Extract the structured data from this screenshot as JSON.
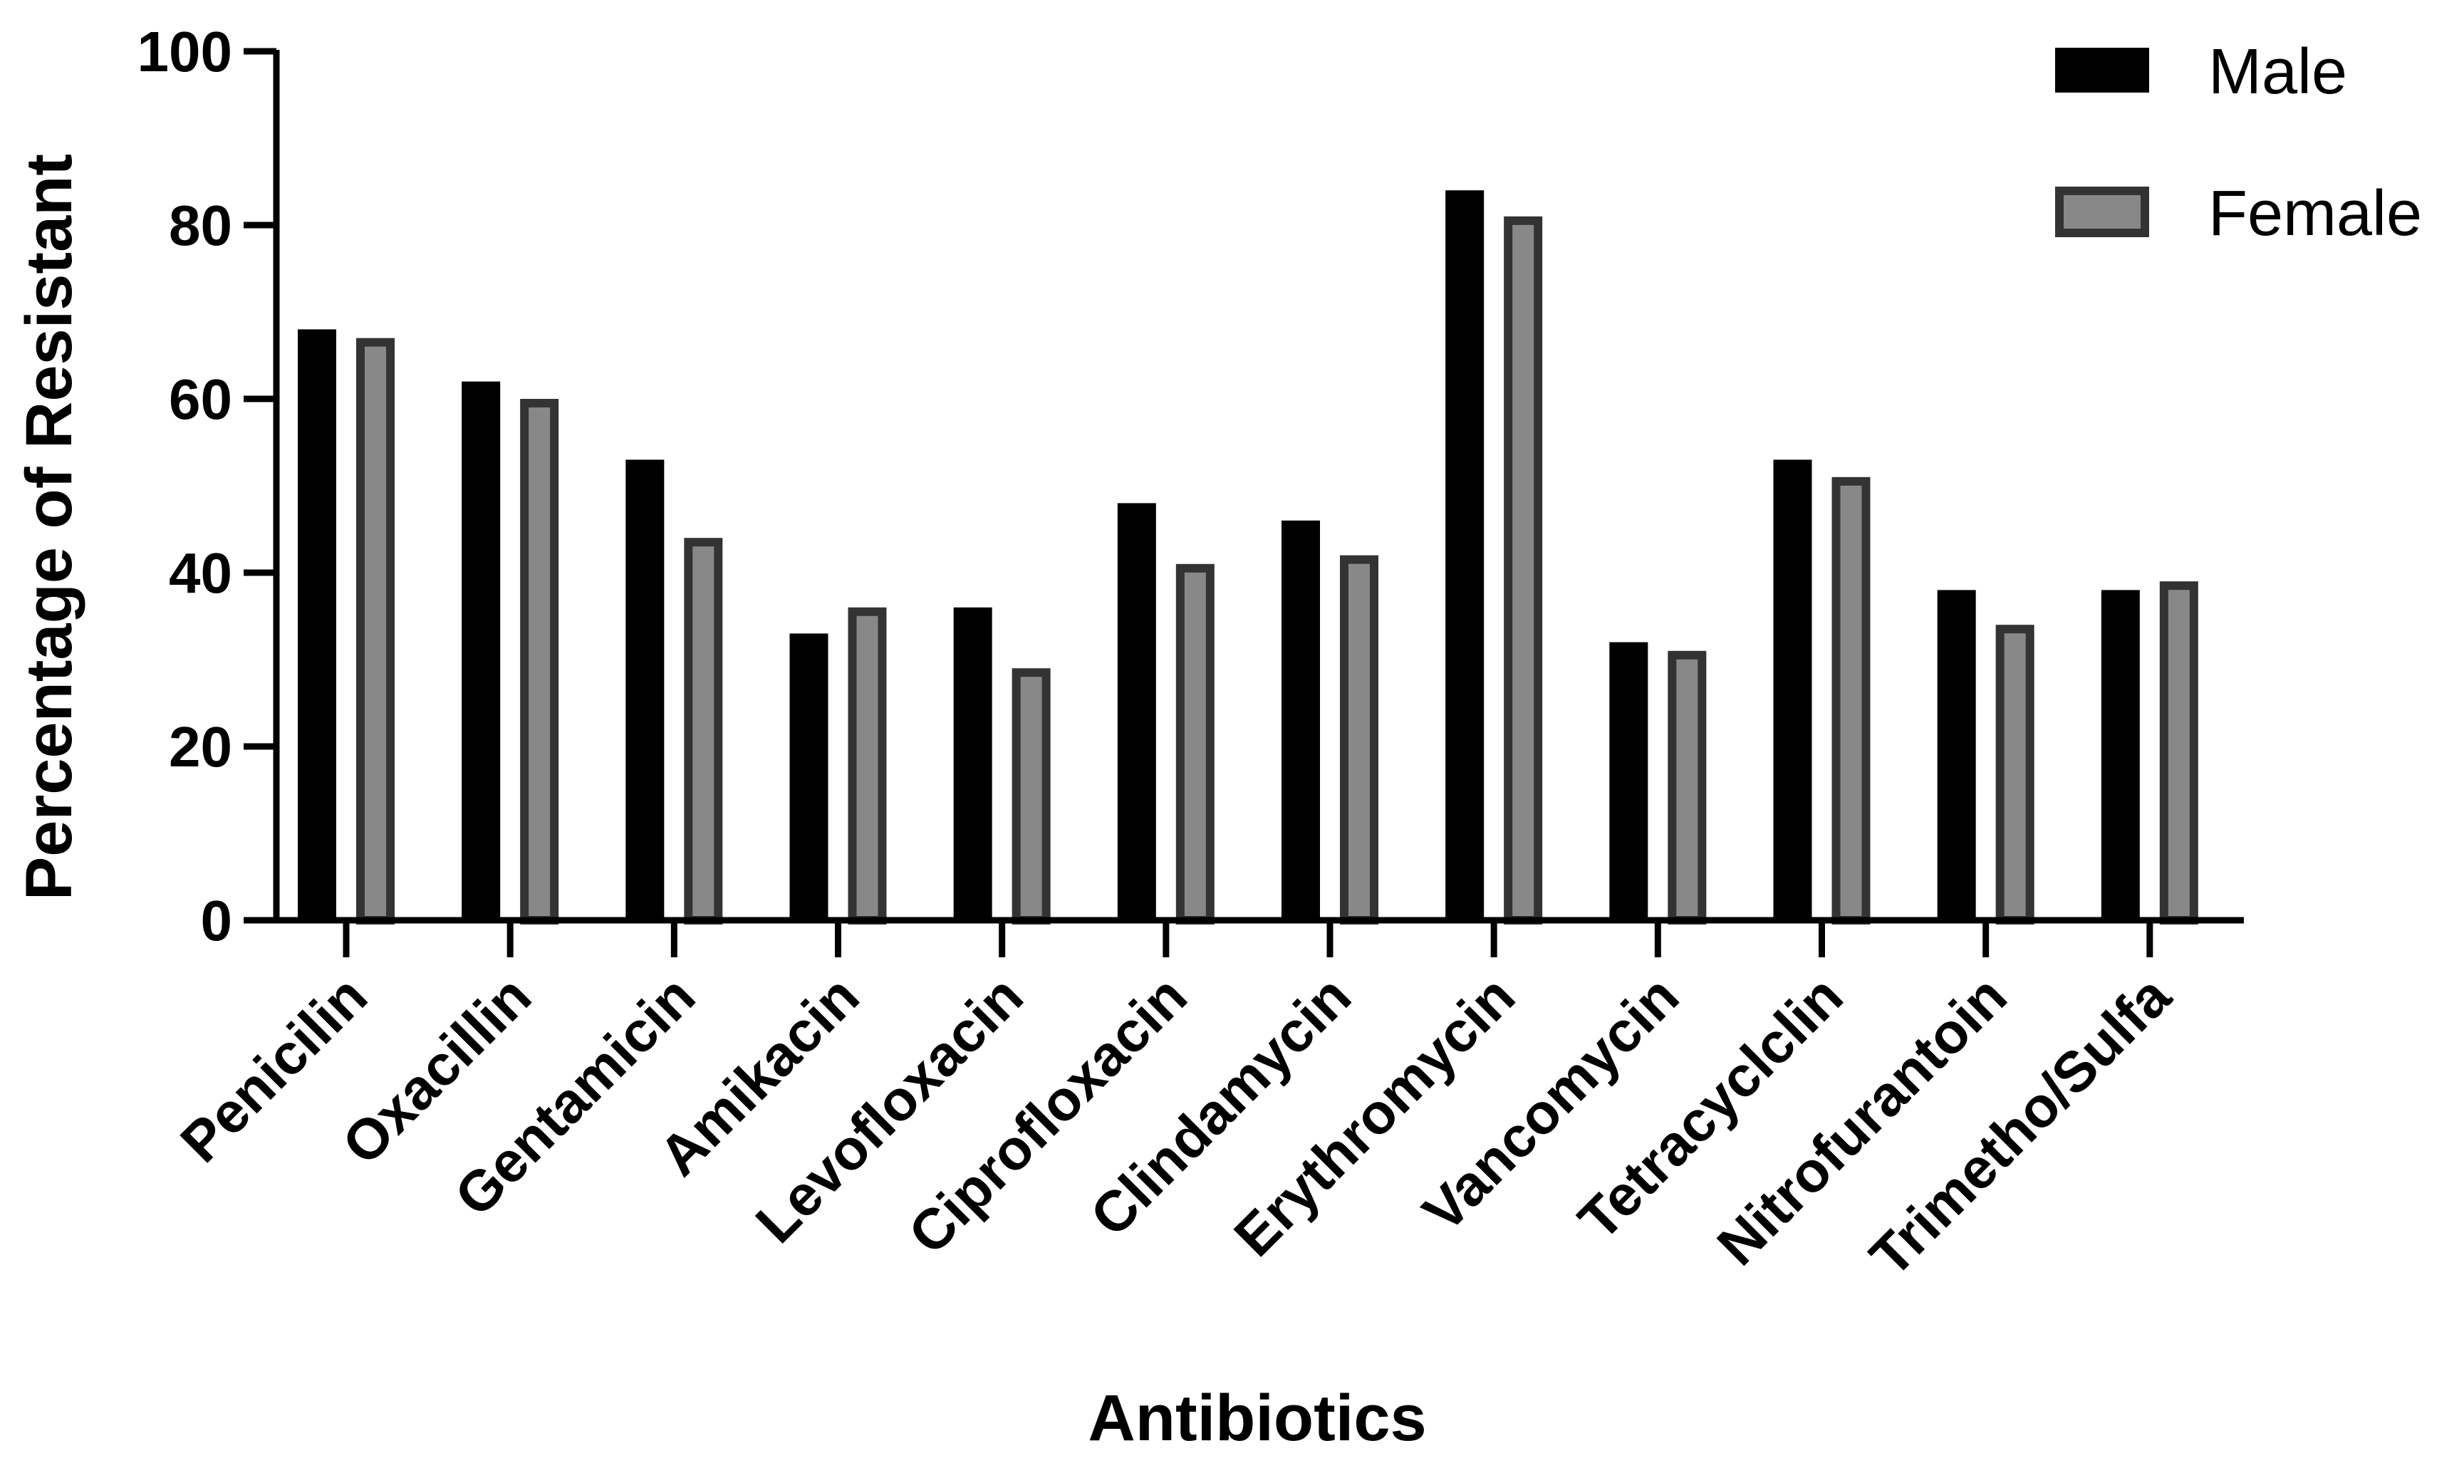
{
  "chart_data": {
    "type": "bar",
    "xlabel": "Antibiotics",
    "ylabel": "Percentage of Resistant",
    "ylim": [
      0,
      100
    ],
    "yticks": [
      0,
      20,
      40,
      60,
      80,
      100
    ],
    "categories": [
      "Penicilin",
      "Oxacillin",
      "Gentamicin",
      "Amikacin",
      "Levofloxacin",
      "Ciprofloxacin",
      "Clindamycin",
      "Erythromycin",
      "Vancomycin",
      "Tetracyclclin",
      "Nitrofurantoin",
      "Trimetho/Sulfa"
    ],
    "series": [
      {
        "name": "Male",
        "values": [
          68,
          62,
          53,
          33,
          36,
          48,
          46,
          84,
          32,
          53,
          38,
          38
        ],
        "color": "#000000"
      },
      {
        "name": "Female",
        "values": [
          67,
          60,
          44,
          36,
          29,
          41,
          42,
          81,
          31,
          51,
          34,
          39
        ],
        "color": "#888888",
        "edge_color": "#333333"
      }
    ],
    "legend_position": "top-right",
    "grid": false
  }
}
